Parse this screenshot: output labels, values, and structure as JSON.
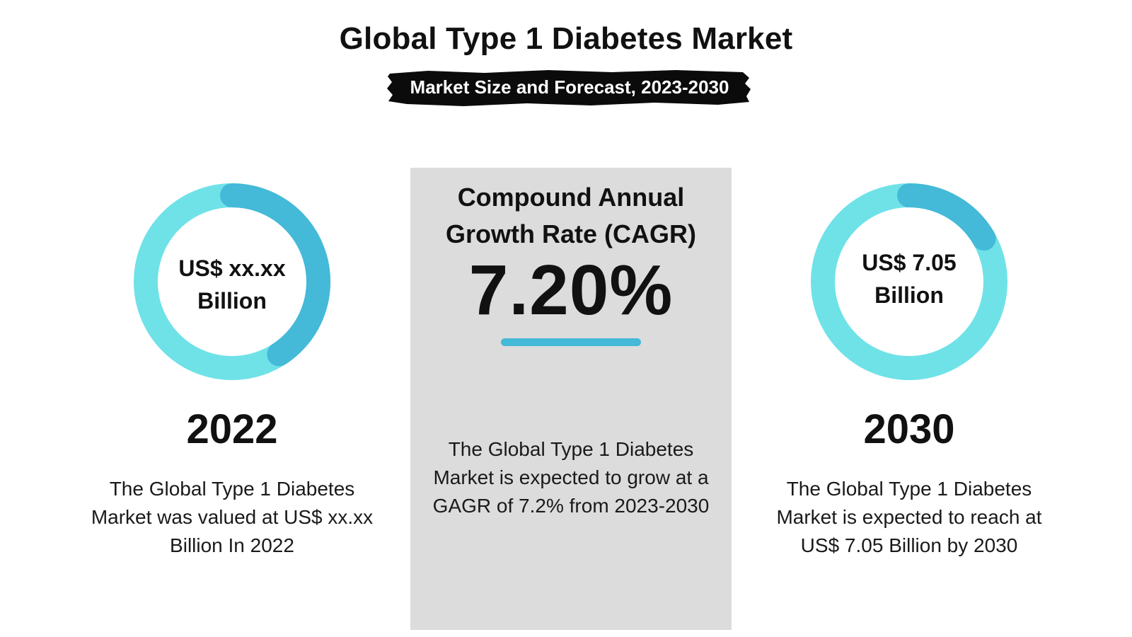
{
  "header": {
    "title": "Global Type 1 Diabetes Market",
    "subtitle": "Market Size and Forecast, 2023-2030"
  },
  "colors": {
    "ring_light": "#6fe2e8",
    "ring_dark": "#44b9d8",
    "panel_bg": "#dcdcdc",
    "brush": "#0b0b0b"
  },
  "left": {
    "value_line1": "US$ xx.xx",
    "value_line2": "Billion",
    "year": "2022",
    "desc_line1": "The Global Type 1 Diabetes",
    "desc_line2": "Market was valued at US$ xx.xx",
    "desc_line3": "Billion In 2022"
  },
  "center": {
    "label_line1": "Compound Annual",
    "label_line2": "Growth Rate (CAGR)",
    "value": "7.20%",
    "desc_line1": "The Global Type 1 Diabetes",
    "desc_line2": "Market is expected to grow at a",
    "desc_line3": "GAGR of 7.2% from 2023-2030"
  },
  "right": {
    "value_line1": "US$ 7.05",
    "value_line2": "Billion",
    "year": "2030",
    "desc_line1": "The Global Type 1 Diabetes",
    "desc_line2": "Market is expected to reach at",
    "desc_line3": "US$ 7.05 Billion by 2030"
  }
}
